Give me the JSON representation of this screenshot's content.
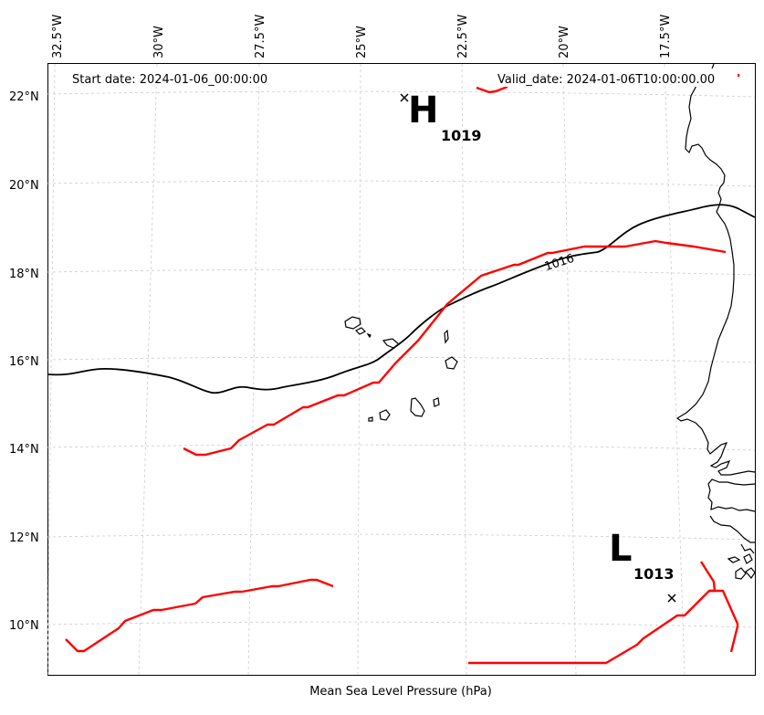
{
  "header": {
    "start_date": "Start date: 2024-01-06_00:00:00",
    "valid_date": "Valid_date: 2024-01-06T10:00:00.00"
  },
  "footer": {
    "caption": "Mean Sea Level Pressure (hPa)"
  },
  "axes": {
    "lon_ticks": [
      "32.5°W",
      "30°W",
      "27.5°W",
      "25°W",
      "22.5°W",
      "20°W",
      "17.5°W"
    ],
    "lat_ticks": [
      "22°N",
      "20°N",
      "18°N",
      "16°N",
      "14°N",
      "12°N",
      "10°N"
    ]
  },
  "pressure_centers": {
    "high": {
      "symbol": "H",
      "value": "1019",
      "lon": -24.0,
      "lat": 22.0
    },
    "low": {
      "symbol": "L",
      "value": "1013",
      "lon": -17.1,
      "lat": 10.6
    }
  },
  "contours": {
    "isobar_label": "1016",
    "isobar_color": "#000000",
    "front_color": "#ff0000"
  },
  "map": {
    "extent": {
      "lon": [
        -33.5,
        -16.0
      ],
      "lat": [
        9.0,
        22.8
      ]
    },
    "gridlines": true,
    "coastline_color": "#000000"
  }
}
